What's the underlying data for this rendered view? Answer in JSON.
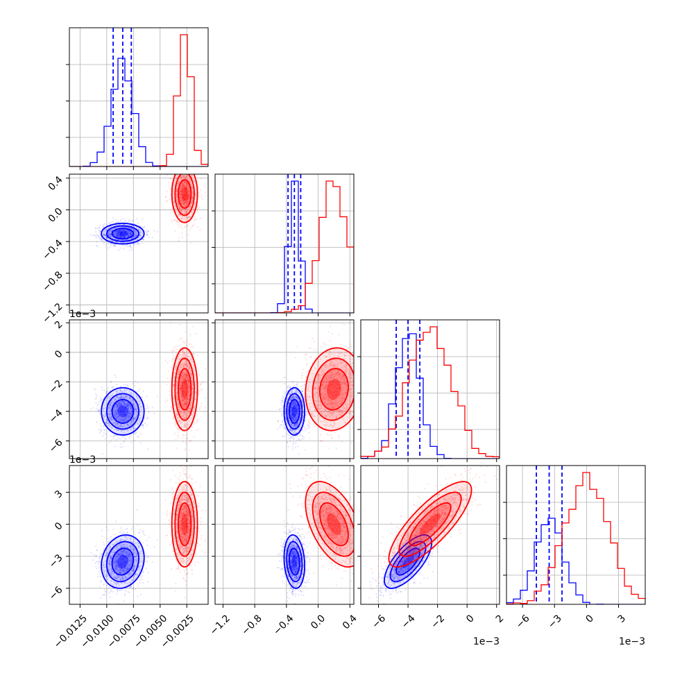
{
  "colors": {
    "series_a": "#0000ff",
    "series_b": "#ff0000",
    "grid": "#b0b0b0"
  },
  "chart_data": {
    "type": "corner",
    "grid": true,
    "parameters": [
      {
        "range": [
          -0.0135,
          -0.0005
        ],
        "ticks": [
          -0.0125,
          -0.01,
          -0.0075,
          -0.005,
          -0.0025
        ],
        "tick_labels": [
          "−0.0125",
          "−0.0100",
          "−0.0075",
          "−0.0050",
          "−0.0025"
        ]
      },
      {
        "range": [
          -1.3,
          0.45
        ],
        "ticks": [
          -1.2,
          -0.8,
          -0.4,
          0.0,
          0.4
        ],
        "tick_labels": [
          "−1.2",
          "−0.8",
          "−0.4",
          "0.0",
          "0.4"
        ]
      },
      {
        "range": [
          -7.2,
          2.2
        ],
        "ticks": [
          -6,
          -4,
          -2,
          0,
          2
        ],
        "tick_labels": [
          "−6",
          "−4",
          "−2",
          "0",
          "2"
        ],
        "offset_label": "1e−3"
      },
      {
        "range": [
          -7.5,
          5.5
        ],
        "ticks": [
          -6,
          -3,
          0,
          3
        ],
        "tick_labels": [
          "−6",
          "−3",
          "0",
          "3"
        ],
        "offset_label": "1e−3"
      }
    ],
    "series": [
      {
        "color": "#0000ff",
        "means": [
          -0.0085,
          -0.3,
          -4.0,
          -3.5
        ],
        "sigmas": [
          0.001,
          0.065,
          0.8,
          1.25
        ],
        "corr": [
          [
            1,
            0,
            0,
            0.15
          ],
          [
            0,
            1,
            0,
            -0.15
          ],
          [
            0,
            0,
            1,
            0.7
          ],
          [
            0.15,
            -0.15,
            0.7,
            1
          ]
        ],
        "quantiles": [
          [
            -0.0094,
            -0.0085,
            -0.0077
          ],
          [
            -0.38,
            -0.3,
            -0.22
          ],
          [
            -4.8,
            -4.0,
            -3.2
          ],
          [
            -4.7,
            -3.5,
            -2.3
          ]
        ],
        "hist_peaks": [
          0.78,
          0.95,
          0.9,
          0.62
        ]
      },
      {
        "color": "#ff0000",
        "means": [
          -0.0027,
          0.2,
          -2.5,
          0.0
        ],
        "sigmas": [
          0.0006,
          0.18,
          1.4,
          2.0
        ],
        "corr": [
          [
            1,
            0,
            0,
            0
          ],
          [
            0,
            1,
            0.1,
            -0.5
          ],
          [
            0,
            0.1,
            1,
            0.8
          ],
          [
            0,
            -0.5,
            0.8,
            1
          ]
        ],
        "hist_peaks": [
          0.95,
          0.95,
          0.95,
          0.95
        ]
      }
    ]
  }
}
